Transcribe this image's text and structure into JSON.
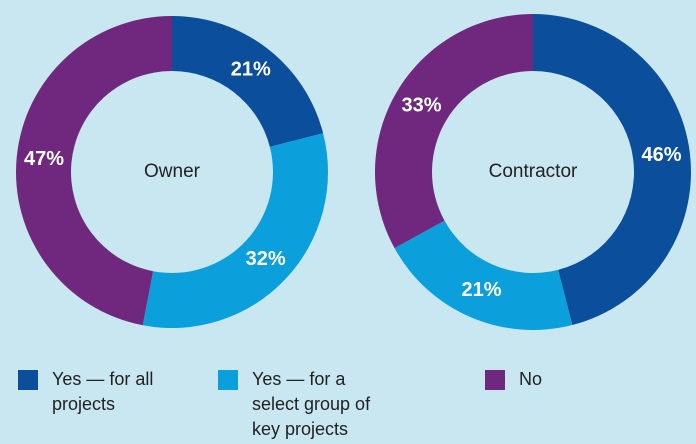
{
  "legend": {
    "items": [
      "Yes — for all projects",
      "Yes — for a select group of key projects",
      "No"
    ],
    "colors": [
      "#0b4f9c",
      "#0b9fdc",
      "#70287e"
    ]
  },
  "chart_data": [
    {
      "type": "pie",
      "center_label": "Owner",
      "values": [
        21,
        32,
        47
      ],
      "value_labels": [
        "21%",
        "32%",
        "47%"
      ]
    },
    {
      "type": "pie",
      "center_label": "Contractor",
      "values": [
        46,
        21,
        33
      ],
      "value_labels": [
        "46%",
        "21%",
        "33%"
      ]
    }
  ]
}
